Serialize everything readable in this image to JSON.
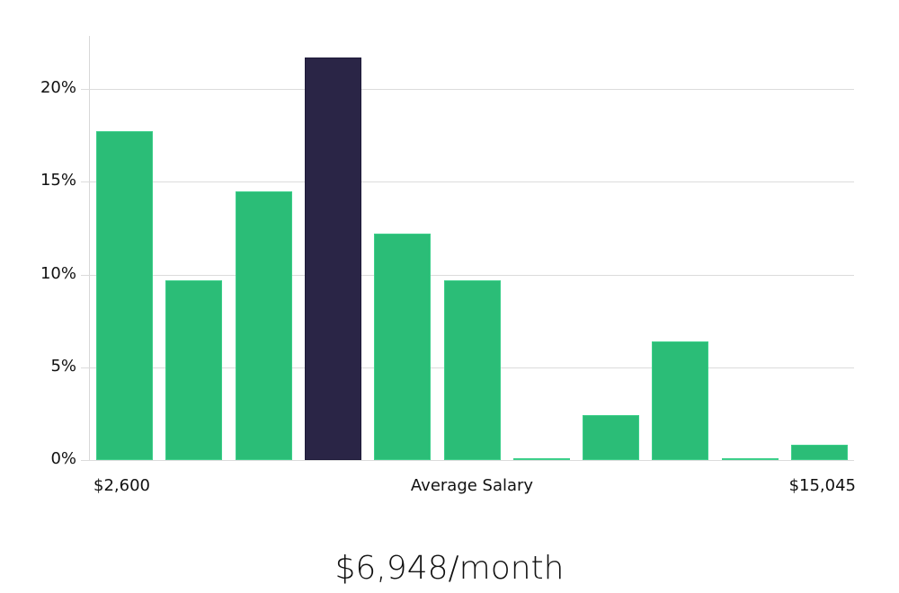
{
  "chart_data": {
    "type": "bar",
    "title": "",
    "xlabel": "Average Salary",
    "ylabel": "",
    "ylim": [
      0,
      23
    ],
    "y_ticks": [
      "0%",
      "5%",
      "10%",
      "15%",
      "20%"
    ],
    "x_range_labels": {
      "min": "$2,600",
      "max": "$15,045"
    },
    "categories": [
      "bin1",
      "bin2",
      "bin3",
      "bin4",
      "bin5",
      "bin6",
      "bin7",
      "bin8",
      "bin9",
      "bin10",
      "bin11"
    ],
    "values": [
      17.7,
      9.7,
      14.5,
      21.7,
      12.2,
      9.7,
      0.1,
      2.4,
      6.4,
      0.1,
      0.8
    ],
    "highlight_index": 3,
    "colors": {
      "default": "#2bbd77",
      "highlight": "#2a2546",
      "grid": "#dcdcdc"
    },
    "grid": true
  },
  "labels": {
    "x_min": "$2,600",
    "x_center": "Average Salary",
    "x_max": "$15,045",
    "headline": "$6,948/month"
  }
}
